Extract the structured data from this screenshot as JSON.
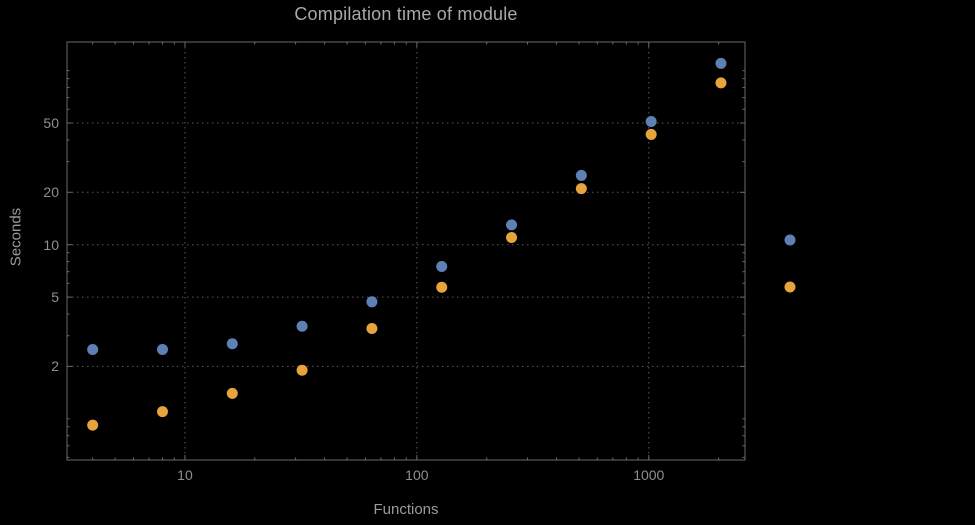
{
  "chart_data": {
    "type": "scatter",
    "title": "Compilation time of module",
    "xlabel": "Functions",
    "ylabel": "Seconds",
    "x_scale": "log",
    "y_scale": "log",
    "xlim": [
      3.1,
      2600
    ],
    "ylim": [
      0.58,
      146
    ],
    "x_tick_labels": [
      "10",
      "100",
      "1000"
    ],
    "x_tick_values": [
      10,
      100,
      1000
    ],
    "y_tick_labels": [
      "2",
      "5",
      "10",
      "20",
      "50"
    ],
    "y_tick_values": [
      2,
      5,
      10,
      20,
      50
    ],
    "grid": "dotted",
    "legend_position": "right-outside",
    "legend_text_visible": false,
    "colors": {
      "background": "#000000",
      "frame": "#6a6a6a",
      "grid": "#5a5a5a",
      "title_text": "#a9a9a9",
      "axis_label_text": "#9a9a9a",
      "tick_text": "#8f8f8f",
      "blue": "#5e81b5",
      "orange": "#e7a33c"
    },
    "marker_radius": 5.5,
    "series": [
      {
        "name": "blue-series",
        "color": "#5e81b5",
        "x": [
          4,
          8,
          16,
          32,
          64,
          128,
          256,
          512,
          1024,
          2048
        ],
        "y": [
          2.5,
          2.5,
          2.7,
          3.4,
          4.7,
          7.5,
          13,
          25,
          51,
          110
        ]
      },
      {
        "name": "orange-series",
        "color": "#e7a33c",
        "x": [
          4,
          8,
          16,
          32,
          64,
          128,
          256,
          512,
          1024,
          2048
        ],
        "y": [
          0.92,
          1.1,
          1.4,
          1.9,
          3.3,
          5.7,
          11,
          21,
          43,
          85
        ]
      }
    ]
  }
}
